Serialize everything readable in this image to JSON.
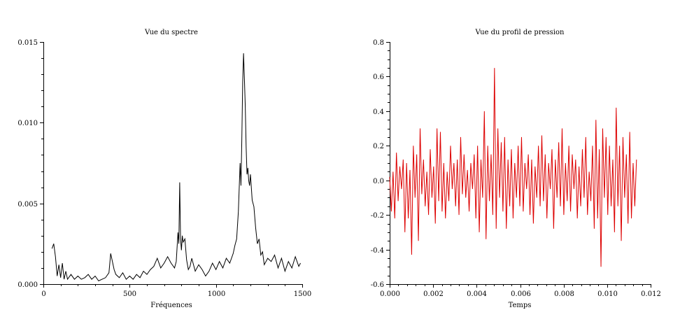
{
  "chart_data": [
    {
      "type": "line",
      "title": "Vue du spectre",
      "xlabel": "Fréquences",
      "ylabel": "",
      "xlim": [
        0,
        1500
      ],
      "ylim": [
        0,
        0.015
      ],
      "xticks": [
        0,
        500,
        1000,
        1500
      ],
      "xtick_labels": [
        "0",
        "500",
        "1000",
        "1500"
      ],
      "yticks": [
        0,
        0.005,
        0.01,
        0.015
      ],
      "ytick_labels": [
        "0.000",
        "0.005",
        "0.010",
        "0.015"
      ],
      "grid": false,
      "color": "#000000",
      "series": [
        {
          "x": [
            50,
            60,
            70,
            80,
            90,
            100,
            110,
            120,
            130,
            140,
            160,
            180,
            200,
            220,
            240,
            260,
            280,
            300,
            320,
            340,
            360,
            380,
            390,
            400,
            410,
            420,
            440,
            460,
            480,
            500,
            520,
            540,
            560,
            580,
            600,
            620,
            640,
            660,
            680,
            700,
            720,
            740,
            760,
            770,
            780,
            785,
            790,
            795,
            800,
            805,
            810,
            820,
            830,
            840,
            850,
            860,
            880,
            900,
            920,
            940,
            960,
            980,
            1000,
            1020,
            1040,
            1060,
            1080,
            1100,
            1110,
            1120,
            1130,
            1140,
            1145,
            1150,
            1155,
            1160,
            1165,
            1170,
            1175,
            1180,
            1185,
            1190,
            1195,
            1200,
            1210,
            1220,
            1230,
            1240,
            1250,
            1260,
            1270,
            1280,
            1300,
            1320,
            1340,
            1360,
            1380,
            1400,
            1420,
            1440,
            1460,
            1480,
            1490
          ],
          "y": [
            0.0022,
            0.0025,
            0.0017,
            0.0005,
            0.0012,
            0.0004,
            0.0013,
            0.0003,
            0.0008,
            0.0003,
            0.0006,
            0.0003,
            0.0005,
            0.0003,
            0.0004,
            0.0006,
            0.0003,
            0.0005,
            0.0002,
            0.0003,
            0.0004,
            0.0007,
            0.0019,
            0.0014,
            0.0009,
            0.0006,
            0.0004,
            0.0007,
            0.0003,
            0.0005,
            0.0003,
            0.0006,
            0.0004,
            0.0008,
            0.0006,
            0.0009,
            0.0011,
            0.0016,
            0.001,
            0.0013,
            0.0017,
            0.0013,
            0.001,
            0.0014,
            0.0032,
            0.0025,
            0.0063,
            0.0028,
            0.0021,
            0.003,
            0.0026,
            0.0028,
            0.0015,
            0.0009,
            0.0011,
            0.0016,
            0.0008,
            0.0012,
            0.0009,
            0.0005,
            0.0008,
            0.0013,
            0.0009,
            0.0014,
            0.001,
            0.0016,
            0.0013,
            0.0019,
            0.0024,
            0.0028,
            0.0045,
            0.0075,
            0.0061,
            0.009,
            0.0125,
            0.0143,
            0.0127,
            0.011,
            0.0085,
            0.0068,
            0.0072,
            0.0064,
            0.0061,
            0.0068,
            0.0052,
            0.0048,
            0.0035,
            0.0025,
            0.0028,
            0.0018,
            0.002,
            0.0012,
            0.0016,
            0.0014,
            0.0018,
            0.001,
            0.0016,
            0.0008,
            0.0014,
            0.001,
            0.0017,
            0.0011,
            0.0013
          ]
        }
      ]
    },
    {
      "type": "line",
      "title": "Vue du profil de pression",
      "xlabel": "Temps",
      "ylabel": "",
      "xlim": [
        0,
        0.012
      ],
      "ylim": [
        -0.6,
        0.8
      ],
      "xticks": [
        0,
        0.002,
        0.004,
        0.006,
        0.008,
        0.01,
        0.012
      ],
      "xtick_labels": [
        "0.000",
        "0.002",
        "0.004",
        "0.006",
        "0.008",
        "0.010",
        "0.012"
      ],
      "yticks": [
        -0.6,
        -0.4,
        -0.2,
        0,
        0.2,
        0.4,
        0.6,
        0.8
      ],
      "ytick_labels": [
        "-0.6",
        "-0.4",
        "-0.2",
        "0.0",
        "0.2",
        "0.4",
        "0.6",
        "0.8"
      ],
      "grid": false,
      "color": "#dd0000",
      "series": [
        {
          "x_start": 0,
          "x_end": 0.01135,
          "y": [
            0.02,
            -0.18,
            0.05,
            -0.22,
            0.16,
            -0.12,
            0.08,
            -0.05,
            0.12,
            -0.3,
            0.1,
            -0.22,
            0.06,
            -0.43,
            0.2,
            -0.1,
            0.15,
            -0.35,
            0.3,
            -0.08,
            0.12,
            -0.15,
            0.05,
            -0.2,
            0.18,
            -0.1,
            0.08,
            -0.25,
            0.3,
            -0.12,
            0.28,
            -0.18,
            0.1,
            -0.22,
            0.05,
            -0.12,
            0.2,
            -0.05,
            0.1,
            -0.15,
            0.12,
            -0.2,
            0.25,
            -0.08,
            0.15,
            -0.1,
            0.06,
            -0.18,
            0.1,
            -0.05,
            0.15,
            -0.22,
            0.2,
            -0.3,
            0.12,
            -0.1,
            0.4,
            -0.34,
            0.2,
            -0.12,
            0.15,
            -0.2,
            0.65,
            -0.28,
            0.3,
            -0.1,
            0.22,
            -0.18,
            0.25,
            -0.28,
            0.12,
            -0.15,
            0.18,
            -0.22,
            0.1,
            -0.1,
            0.2,
            -0.15,
            0.25,
            -0.18,
            0.1,
            -0.05,
            0.15,
            -0.2,
            0.12,
            -0.25,
            0.08,
            -0.1,
            0.2,
            -0.15,
            0.26,
            -0.12,
            0.15,
            -0.22,
            0.1,
            -0.05,
            0.18,
            -0.28,
            0.12,
            -0.1,
            0.22,
            -0.15,
            0.3,
            -0.2,
            0.1,
            -0.12,
            0.2,
            -0.18,
            0.15,
            -0.05,
            0.12,
            -0.22,
            0.08,
            -0.15,
            0.18,
            -0.1,
            0.25,
            -0.2,
            0.05,
            -0.12,
            0.2,
            -0.28,
            0.35,
            -0.22,
            0.18,
            -0.5,
            0.3,
            -0.1,
            0.25,
            -0.2,
            0.2,
            -0.15,
            0.12,
            -0.3,
            0.42,
            -0.15,
            0.2,
            -0.35,
            0.25,
            -0.1,
            0.15,
            -0.25,
            0.28,
            -0.22,
            0.1,
            -0.15,
            0.12
          ]
        }
      ]
    }
  ]
}
